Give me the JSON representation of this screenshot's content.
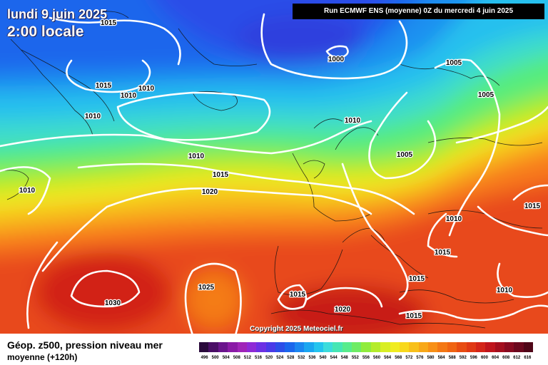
{
  "header": {
    "date": "lundi 9 juin 2025",
    "time": "2:00 locale",
    "run_info": "Run ECMWF ENS (moyenne) 0Z du mercredi 4 juin 2025"
  },
  "copyright": "Copyright 2025 Meteociel.fr",
  "footer": {
    "title": "Géop. z500, pression niveau mer",
    "subtitle": "moyenne   (+120h)"
  },
  "colors": {
    "isobar": "#ffffff",
    "high": "#e8201a",
    "low": "#1e3ce0"
  },
  "pressure_labels": [
    {
      "text": "1015"
    },
    {
      "text": "1015"
    },
    {
      "text": "1010"
    },
    {
      "text": "1010"
    },
    {
      "text": "1010"
    },
    {
      "text": "1000"
    },
    {
      "text": "1005"
    },
    {
      "text": "1005"
    },
    {
      "text": "1010"
    },
    {
      "text": "1005"
    },
    {
      "text": "1010"
    },
    {
      "text": "1015"
    },
    {
      "text": "1010"
    },
    {
      "text": "1020"
    },
    {
      "text": "1015"
    },
    {
      "text": "1010"
    },
    {
      "text": "1015"
    },
    {
      "text": "1015"
    },
    {
      "text": "1025"
    },
    {
      "text": "1030"
    },
    {
      "text": "1015"
    },
    {
      "text": "1020"
    },
    {
      "text": "1015"
    },
    {
      "text": "1010"
    }
  ],
  "scale": {
    "colors": [
      "#2a0a3c",
      "#4a0e66",
      "#6a148c",
      "#8a1aa6",
      "#a024b8",
      "#8e2ad6",
      "#6c30e4",
      "#4a3ae8",
      "#2c4ee8",
      "#1a66ec",
      "#1a86f0",
      "#1aa6f0",
      "#24c4ee",
      "#3cdcdc",
      "#46e6b4",
      "#58ec8c",
      "#6eec64",
      "#90ec3c",
      "#b4ec2a",
      "#d8ee24",
      "#f0ec20",
      "#f8d81c",
      "#f8c01a",
      "#f8a818",
      "#f89016",
      "#f47814",
      "#f06412",
      "#e84c12",
      "#e03814",
      "#d42418",
      "#c0141c",
      "#a40e1e",
      "#880a20",
      "#6c081e",
      "#500618"
    ],
    "labels": [
      "496",
      "500",
      "504",
      "508",
      "512",
      "516",
      "520",
      "524",
      "528",
      "532",
      "536",
      "540",
      "544",
      "548",
      "552",
      "556",
      "560",
      "564",
      "568",
      "572",
      "576",
      "580",
      "584",
      "588",
      "592",
      "596",
      "600",
      "604",
      "608",
      "612",
      "616"
    ]
  }
}
